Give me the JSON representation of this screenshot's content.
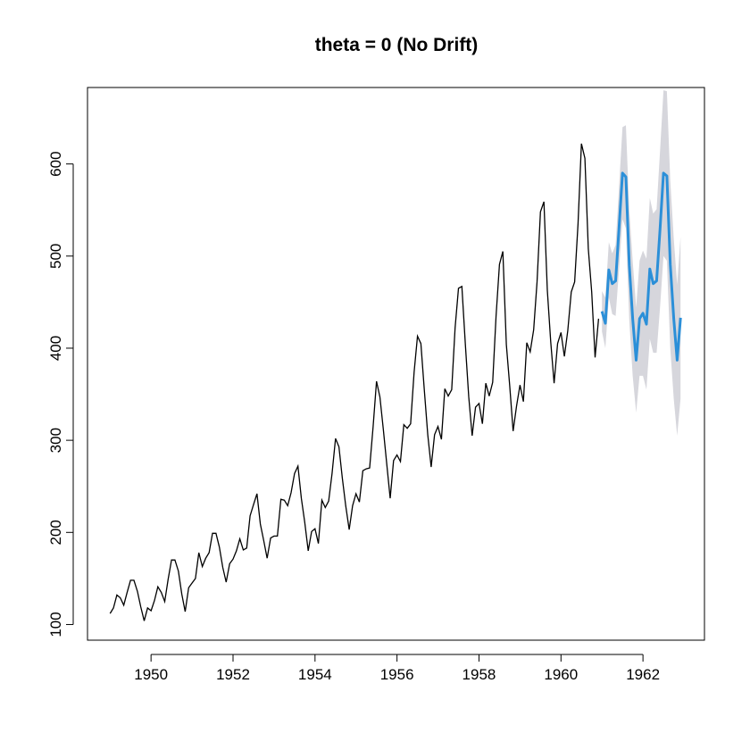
{
  "chart_data": {
    "type": "line",
    "title": "theta = 0 (No Drift)",
    "xlabel": "",
    "ylabel": "",
    "xlim": [
      1948.45,
      1963.5
    ],
    "ylim": [
      83,
      683
    ],
    "x_ticks": [
      1950,
      1952,
      1954,
      1956,
      1958,
      1960,
      1962
    ],
    "x_tick_labels": [
      "1950",
      "1952",
      "1954",
      "1956",
      "1958",
      "1960",
      "1962"
    ],
    "y_ticks": [
      100,
      200,
      300,
      400,
      500,
      600
    ],
    "y_tick_labels": [
      "100",
      "200",
      "300",
      "400",
      "500",
      "600"
    ],
    "grid": false,
    "legend": "none",
    "colors": {
      "observed": "#000000",
      "forecast": "#2b8fd8",
      "interval": "#d6d6dc",
      "axis": "#000000"
    },
    "observed": {
      "start": 1949.0,
      "step": 0.08333,
      "values": [
        112,
        118,
        132,
        129,
        121,
        135,
        148,
        148,
        136,
        119,
        104,
        118,
        115,
        126,
        141,
        135,
        125,
        149,
        170,
        170,
        158,
        133,
        114,
        140,
        145,
        150,
        178,
        163,
        172,
        178,
        199,
        199,
        184,
        162,
        146,
        166,
        171,
        180,
        193,
        181,
        183,
        218,
        230,
        242,
        209,
        191,
        172,
        194,
        196,
        196,
        236,
        235,
        229,
        243,
        264,
        272,
        237,
        211,
        180,
        201,
        204,
        188,
        235,
        227,
        234,
        264,
        302,
        293,
        259,
        229,
        203,
        229,
        242,
        233,
        267,
        269,
        270,
        315,
        364,
        347,
        312,
        274,
        237,
        278,
        284,
        277,
        317,
        313,
        318,
        374,
        413,
        405,
        355,
        306,
        271,
        306,
        315,
        301,
        356,
        348,
        355,
        422,
        465,
        467,
        404,
        347,
        305,
        336,
        340,
        318,
        362,
        348,
        363,
        435,
        491,
        505,
        404,
        359,
        310,
        337,
        360,
        342,
        406,
        396,
        420,
        472,
        548,
        559,
        463,
        407,
        362,
        405,
        417,
        391,
        419,
        461,
        472,
        535,
        622,
        606,
        508,
        461,
        390,
        432
      ]
    },
    "forecast": {
      "start": 1961.0,
      "step": 0.08333,
      "values": [
        440,
        427,
        485,
        470,
        473,
        530,
        590,
        586,
        490,
        432,
        387,
        432,
        438,
        426,
        486,
        470,
        473,
        530,
        590,
        587,
        491,
        432,
        387,
        433
      ],
      "lower": [
        418,
        400,
        455,
        437,
        435,
        485,
        540,
        530,
        430,
        370,
        330,
        370,
        370,
        355,
        410,
        395,
        395,
        445,
        500,
        495,
        400,
        345,
        305,
        345
      ],
      "upper": [
        462,
        455,
        515,
        503,
        512,
        575,
        640,
        642,
        550,
        495,
        444,
        495,
        506,
        497,
        563,
        546,
        551,
        615,
        680,
        679,
        582,
        519,
        469,
        521
      ]
    }
  }
}
